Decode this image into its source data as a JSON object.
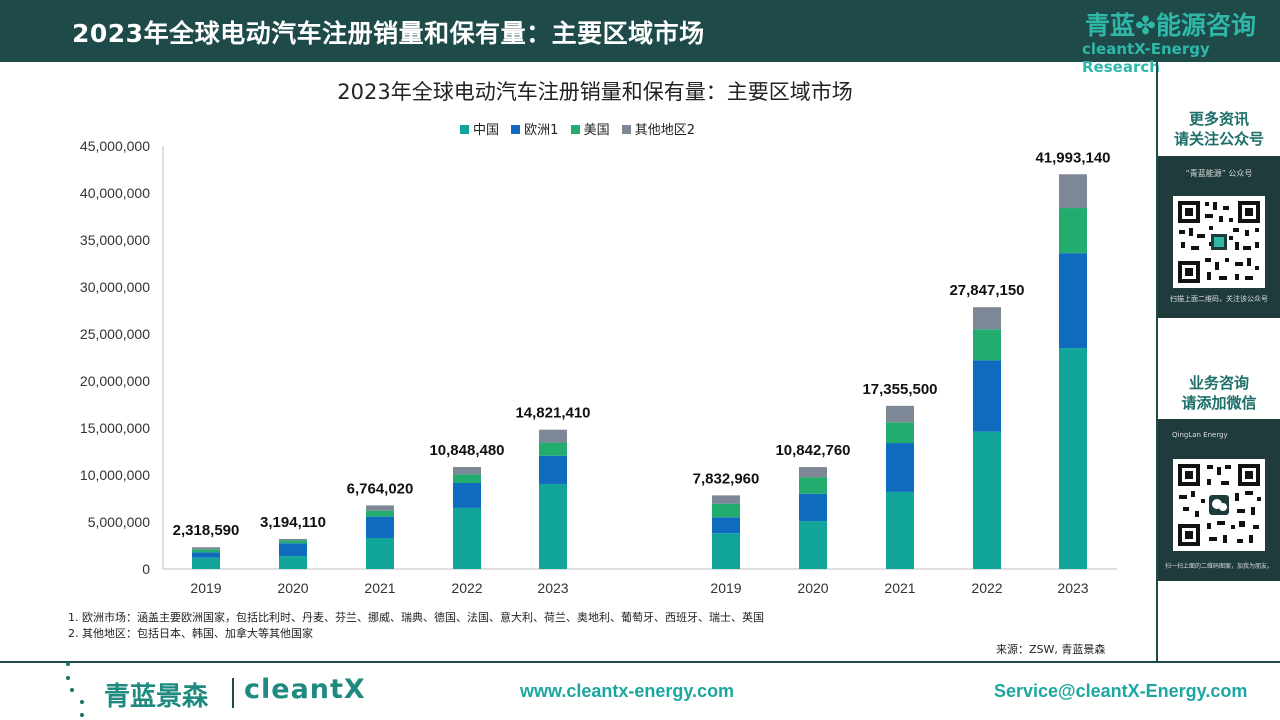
{
  "header": {
    "title": "2023年全球电动汽车注册销量和保有量：主要区域市场",
    "brand_cn_left": "青蓝",
    "brand_cn_right": "能源咨询",
    "brand_leaf": "✤",
    "brand_en": "cleantX-Energy Research"
  },
  "sidebar": {
    "block1_title_line1": "更多资讯",
    "block1_title_line2": "请关注公众号",
    "block1_qr_top": "“青蓝能源” 公众号",
    "block1_qr_bottom": "扫描上面二维码，关注该公众号",
    "block2_title_line1": "业务咨询",
    "block2_title_line2": "请添加微信",
    "block2_qr_top": "QingLan Energy",
    "block2_qr_bottom": "扫一扫上面的二维码图案，加我为朋友。"
  },
  "notes": {
    "note1": "1. 欧洲市场：涵盖主要欧洲国家，包括比利时、丹麦、芬兰、挪威、瑞典、德国、法国、意大利、荷兰、奥地利、葡萄牙、西班牙、瑞士、英国",
    "note2": "2. 其他地区：包括日本、韩国、加拿大等其他国家",
    "source": "来源：ZSW, 青蓝景森"
  },
  "footer": {
    "logo_cn": "青蓝景森",
    "logo_en": "cleantX",
    "website": "www.cleantx-energy.com",
    "email": "Service@cleantX-Energy.com"
  },
  "colors": {
    "china": "#12a59c",
    "europe": "#0e6bbd",
    "usa": "#22ad6e",
    "other": "#7d8796",
    "header_bg": "#1e4a4a",
    "accent": "#1ba7a0"
  },
  "chart_data": {
    "type": "bar",
    "stacked": true,
    "title": "2023年全球电动汽车注册销量和保有量：主要区域市场",
    "categories": [
      "2019",
      "2020",
      "2021",
      "2022",
      "2023",
      "2019",
      "2020",
      "2021",
      "2022",
      "2023"
    ],
    "series": [
      {
        "name": "中国",
        "values": [
          1200000,
          1370000,
          3300000,
          6500000,
          9050000,
          3800000,
          5100000,
          8200000,
          14600000,
          23500000
        ]
      },
      {
        "name": "欧洲1",
        "values": [
          570000,
          1370000,
          2270000,
          2650000,
          3000000,
          1700000,
          2900000,
          5200000,
          7600000,
          10100000
        ]
      },
      {
        "name": "美国",
        "values": [
          330000,
          300000,
          630000,
          920000,
          1400000,
          1450000,
          1750000,
          2200000,
          3300000,
          4800000
        ]
      },
      {
        "name": "其他地区2",
        "values": [
          218590,
          154110,
          564020,
          778480,
          1371410,
          882960,
          1092760,
          1755500,
          2347150,
          3593140
        ]
      }
    ],
    "totals": [
      "2,318,590",
      "3,194,110",
      "6,764,020",
      "10,848,480",
      "14,821,410",
      "7,832,960",
      "10,842,760",
      "17,355,500",
      "27,847,150",
      "41,993,140"
    ],
    "ylim": [
      0,
      45000000
    ],
    "yticks": [
      "0",
      "5,000,000",
      "10,000,000",
      "15,000,000",
      "20,000,000",
      "25,000,000",
      "30,000,000",
      "35,000,000",
      "40,000,000",
      "45,000,000"
    ],
    "grid": false,
    "legend_position": "top"
  }
}
